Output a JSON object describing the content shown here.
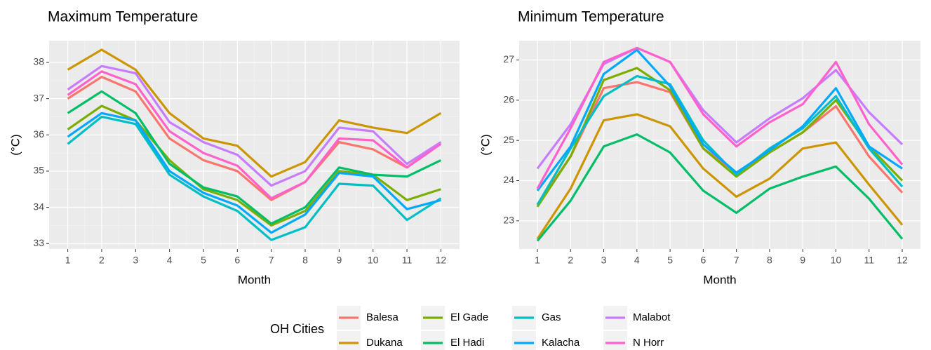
{
  "chart_data": [
    {
      "type": "line",
      "title": "Maximum Temperature",
      "x_label": "Month",
      "y_label": "(°C)",
      "x": [
        1,
        2,
        3,
        4,
        5,
        6,
        7,
        8,
        9,
        10,
        11,
        12
      ],
      "xlim": [
        0.45,
        12.55
      ],
      "xticks": [
        1,
        2,
        3,
        4,
        5,
        6,
        7,
        8,
        9,
        10,
        11,
        12
      ],
      "ylim": [
        32.85,
        38.6
      ],
      "yticks": [
        33,
        34,
        35,
        36,
        37,
        38
      ],
      "grid": true,
      "series": [
        {
          "name": "Balesa",
          "color": "#F8766D",
          "values": [
            37.0,
            37.6,
            37.2,
            35.9,
            35.3,
            35.0,
            34.2,
            34.7,
            35.8,
            35.6,
            35.1,
            35.8
          ]
        },
        {
          "name": "Dukana",
          "color": "#CD9600",
          "values": [
            37.8,
            38.35,
            37.8,
            36.6,
            35.9,
            35.7,
            34.85,
            35.25,
            36.4,
            36.2,
            36.05,
            36.6
          ]
        },
        {
          "name": "El Gade",
          "color": "#7CAE00",
          "values": [
            36.15,
            36.8,
            36.4,
            35.3,
            34.5,
            34.2,
            33.5,
            33.9,
            35.0,
            34.9,
            34.2,
            34.5
          ]
        },
        {
          "name": "El Hadi",
          "color": "#00BE67",
          "values": [
            36.6,
            37.2,
            36.6,
            35.2,
            34.55,
            34.3,
            33.55,
            34.0,
            35.1,
            34.9,
            34.85,
            35.3
          ]
        },
        {
          "name": "Gas",
          "color": "#00BFC4",
          "values": [
            35.75,
            36.5,
            36.3,
            34.9,
            34.3,
            33.9,
            33.1,
            33.45,
            34.65,
            34.6,
            33.65,
            34.25
          ]
        },
        {
          "name": "Kalacha",
          "color": "#00A9FF",
          "values": [
            35.95,
            36.6,
            36.4,
            35.0,
            34.4,
            34.05,
            33.3,
            33.8,
            34.95,
            34.85,
            33.95,
            34.2
          ]
        },
        {
          "name": "Malabot",
          "color": "#C77CFF",
          "values": [
            37.25,
            37.9,
            37.7,
            36.35,
            35.8,
            35.45,
            34.6,
            35.0,
            36.2,
            36.1,
            35.2,
            35.8
          ]
        },
        {
          "name": "N Horr",
          "color": "#FF61CC",
          "values": [
            37.1,
            37.75,
            37.4,
            36.1,
            35.5,
            35.15,
            34.25,
            34.7,
            35.9,
            35.85,
            35.1,
            35.75
          ]
        }
      ]
    },
    {
      "type": "line",
      "title": "Minimum Temperature",
      "x_label": "Month",
      "y_label": "(°C)",
      "x": [
        1,
        2,
        3,
        4,
        5,
        6,
        7,
        8,
        9,
        10,
        11,
        12
      ],
      "xlim": [
        0.45,
        12.55
      ],
      "xticks": [
        1,
        2,
        3,
        4,
        5,
        6,
        7,
        8,
        9,
        10,
        11,
        12
      ],
      "ylim": [
        22.3,
        27.48
      ],
      "yticks": [
        23,
        24,
        25,
        26,
        27
      ],
      "grid": true,
      "series": [
        {
          "color": "#F8766D",
          "values": [
            23.4,
            24.6,
            26.3,
            26.45,
            26.2,
            24.8,
            24.2,
            24.7,
            25.2,
            25.85,
            24.6,
            23.7
          ]
        },
        {
          "color": "#CD9600",
          "values": [
            22.55,
            23.8,
            25.5,
            25.65,
            25.35,
            24.3,
            23.6,
            24.05,
            24.8,
            24.95,
            23.9,
            22.9
          ]
        },
        {
          "color": "#7CAE00",
          "values": [
            23.35,
            24.6,
            26.5,
            26.8,
            26.25,
            24.8,
            24.1,
            24.7,
            25.2,
            26.0,
            24.85,
            24.0
          ]
        },
        {
          "color": "#00BE67",
          "values": [
            22.5,
            23.5,
            24.85,
            25.15,
            24.7,
            23.75,
            23.2,
            23.8,
            24.1,
            24.35,
            23.55,
            22.55
          ]
        },
        {
          "color": "#00BFC4",
          "values": [
            23.4,
            24.8,
            26.1,
            26.6,
            26.4,
            25.0,
            24.15,
            24.8,
            25.3,
            26.1,
            24.8,
            23.85
          ]
        },
        {
          "color": "#00A9FF",
          "values": [
            23.75,
            24.85,
            26.65,
            27.25,
            26.35,
            24.9,
            24.2,
            24.75,
            25.35,
            26.3,
            24.85,
            24.3
          ]
        },
        {
          "color": "#C77CFF",
          "values": [
            24.3,
            25.4,
            26.9,
            27.3,
            26.95,
            25.75,
            24.95,
            25.55,
            26.05,
            26.75,
            25.7,
            24.9
          ]
        },
        {
          "color": "#FF61CC",
          "values": [
            23.8,
            25.3,
            26.95,
            27.3,
            26.95,
            25.65,
            24.85,
            25.45,
            25.9,
            26.95,
            25.4,
            24.4
          ]
        }
      ]
    }
  ],
  "legend": {
    "title": "OH Cities",
    "position": "bottom"
  }
}
